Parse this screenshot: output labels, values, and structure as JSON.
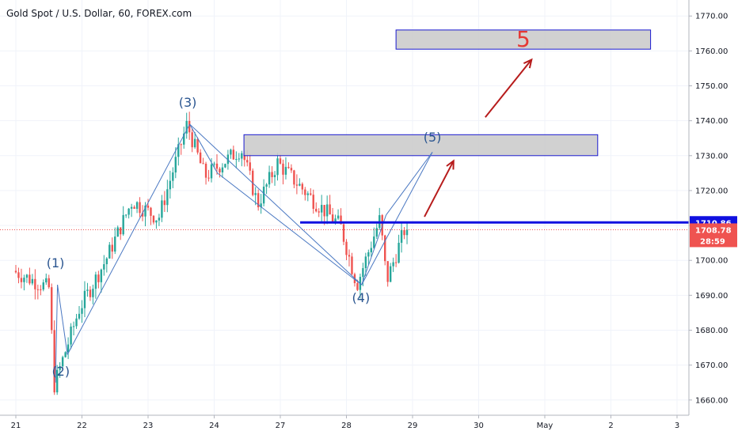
{
  "chart_data": {
    "type": "candlestick",
    "title": "Gold Spot / U.S. Dollar, 60, FOREX.com",
    "ylim": [
      1657,
      1773
    ],
    "y_ticks": [
      1660,
      1670,
      1680,
      1690,
      1700,
      1710,
      1720,
      1730,
      1740,
      1750,
      1760,
      1770
    ],
    "x_ticks": [
      {
        "label": "21",
        "t": 0
      },
      {
        "label": "22",
        "t": 1
      },
      {
        "label": "23",
        "t": 2
      },
      {
        "label": "24",
        "t": 3
      },
      {
        "label": "27",
        "t": 4
      },
      {
        "label": "28",
        "t": 5
      },
      {
        "label": "29",
        "t": 6
      },
      {
        "label": "30",
        "t": 7
      },
      {
        "label": "May",
        "t": 8
      },
      {
        "label": "2",
        "t": 9
      },
      {
        "label": "3",
        "t": 10
      }
    ],
    "key_points": [
      {
        "t": 0.0,
        "price": 1697
      },
      {
        "t": 0.55,
        "price": 1692
      },
      {
        "t": 0.62,
        "price": 1664
      },
      {
        "t": 1.0,
        "price": 1686
      },
      {
        "t": 1.4,
        "price": 1700
      },
      {
        "t": 1.8,
        "price": 1717
      },
      {
        "t": 2.2,
        "price": 1712
      },
      {
        "t": 2.63,
        "price": 1739
      },
      {
        "t": 2.9,
        "price": 1724
      },
      {
        "t": 3.45,
        "price": 1732
      },
      {
        "t": 3.7,
        "price": 1716
      },
      {
        "t": 4.0,
        "price": 1728
      },
      {
        "t": 4.5,
        "price": 1718
      },
      {
        "t": 4.95,
        "price": 1710
      },
      {
        "t": 5.2,
        "price": 1693
      },
      {
        "t": 5.55,
        "price": 1712
      },
      {
        "t": 5.65,
        "price": 1694
      },
      {
        "t": 5.92,
        "price": 1708.78
      }
    ],
    "wave_lines": [
      {
        "from": {
          "t": 0.6,
          "price": 1665
        },
        "to": {
          "t": 0.63,
          "price": 1693
        }
      },
      {
        "from": {
          "t": 0.63,
          "price": 1693
        },
        "to": {
          "t": 0.78,
          "price": 1673
        }
      },
      {
        "from": {
          "t": 0.78,
          "price": 1673
        },
        "to": {
          "t": 2.63,
          "price": 1739
        }
      },
      {
        "from": {
          "t": 2.63,
          "price": 1739
        },
        "to": {
          "t": 3.05,
          "price": 1725
        }
      },
      {
        "from": {
          "t": 2.63,
          "price": 1739
        },
        "to": {
          "t": 5.23,
          "price": 1693
        }
      },
      {
        "from": {
          "t": 3.05,
          "price": 1725
        },
        "to": {
          "t": 5.23,
          "price": 1693
        }
      },
      {
        "from": {
          "t": 5.23,
          "price": 1693
        },
        "to": {
          "t": 5.6,
          "price": 1713
        }
      },
      {
        "from": {
          "t": 5.23,
          "price": 1693
        },
        "to": {
          "t": 6.3,
          "price": 1731
        }
      },
      {
        "from": {
          "t": 5.6,
          "price": 1713
        },
        "to": {
          "t": 6.3,
          "price": 1731
        }
      }
    ],
    "wave_labels": [
      {
        "text": "(1)",
        "t": 0.6,
        "price": 1698
      },
      {
        "text": "(2)",
        "t": 0.68,
        "price": 1667
      },
      {
        "text": "(3)",
        "t": 2.6,
        "price": 1744
      },
      {
        "text": "(4)",
        "t": 5.22,
        "price": 1688
      },
      {
        "text": "(5)",
        "t": 6.3,
        "price": 1734
      }
    ],
    "zones": [
      {
        "t_start": 3.45,
        "t_end": 8.8,
        "price_low": 1730,
        "price_high": 1736,
        "label": ""
      },
      {
        "t_start": 5.75,
        "t_end": 9.6,
        "price_low": 1760.5,
        "price_high": 1766,
        "label": "5"
      }
    ],
    "arrows": [
      {
        "from": {
          "t": 6.18,
          "price": 1712.5
        },
        "to": {
          "t": 6.62,
          "price": 1728.5
        }
      },
      {
        "from": {
          "t": 7.1,
          "price": 1741
        },
        "to": {
          "t": 7.8,
          "price": 1757.5
        }
      }
    ],
    "resistance": {
      "price": 1710.86,
      "t_start": 4.3,
      "t_end": 10.1,
      "label": "1710.86",
      "color": "#1010e0"
    },
    "last_price": {
      "price": 1708.78,
      "label": "1708.78",
      "countdown": "28:59",
      "color": "#ef5350"
    },
    "colors": {
      "up": "#26a69a",
      "down": "#ef5350",
      "wave": "#4a78c2",
      "zone_fill": "#cccccc",
      "zone_border": "#1a1ad0",
      "arrow": "#b71c1c"
    }
  }
}
